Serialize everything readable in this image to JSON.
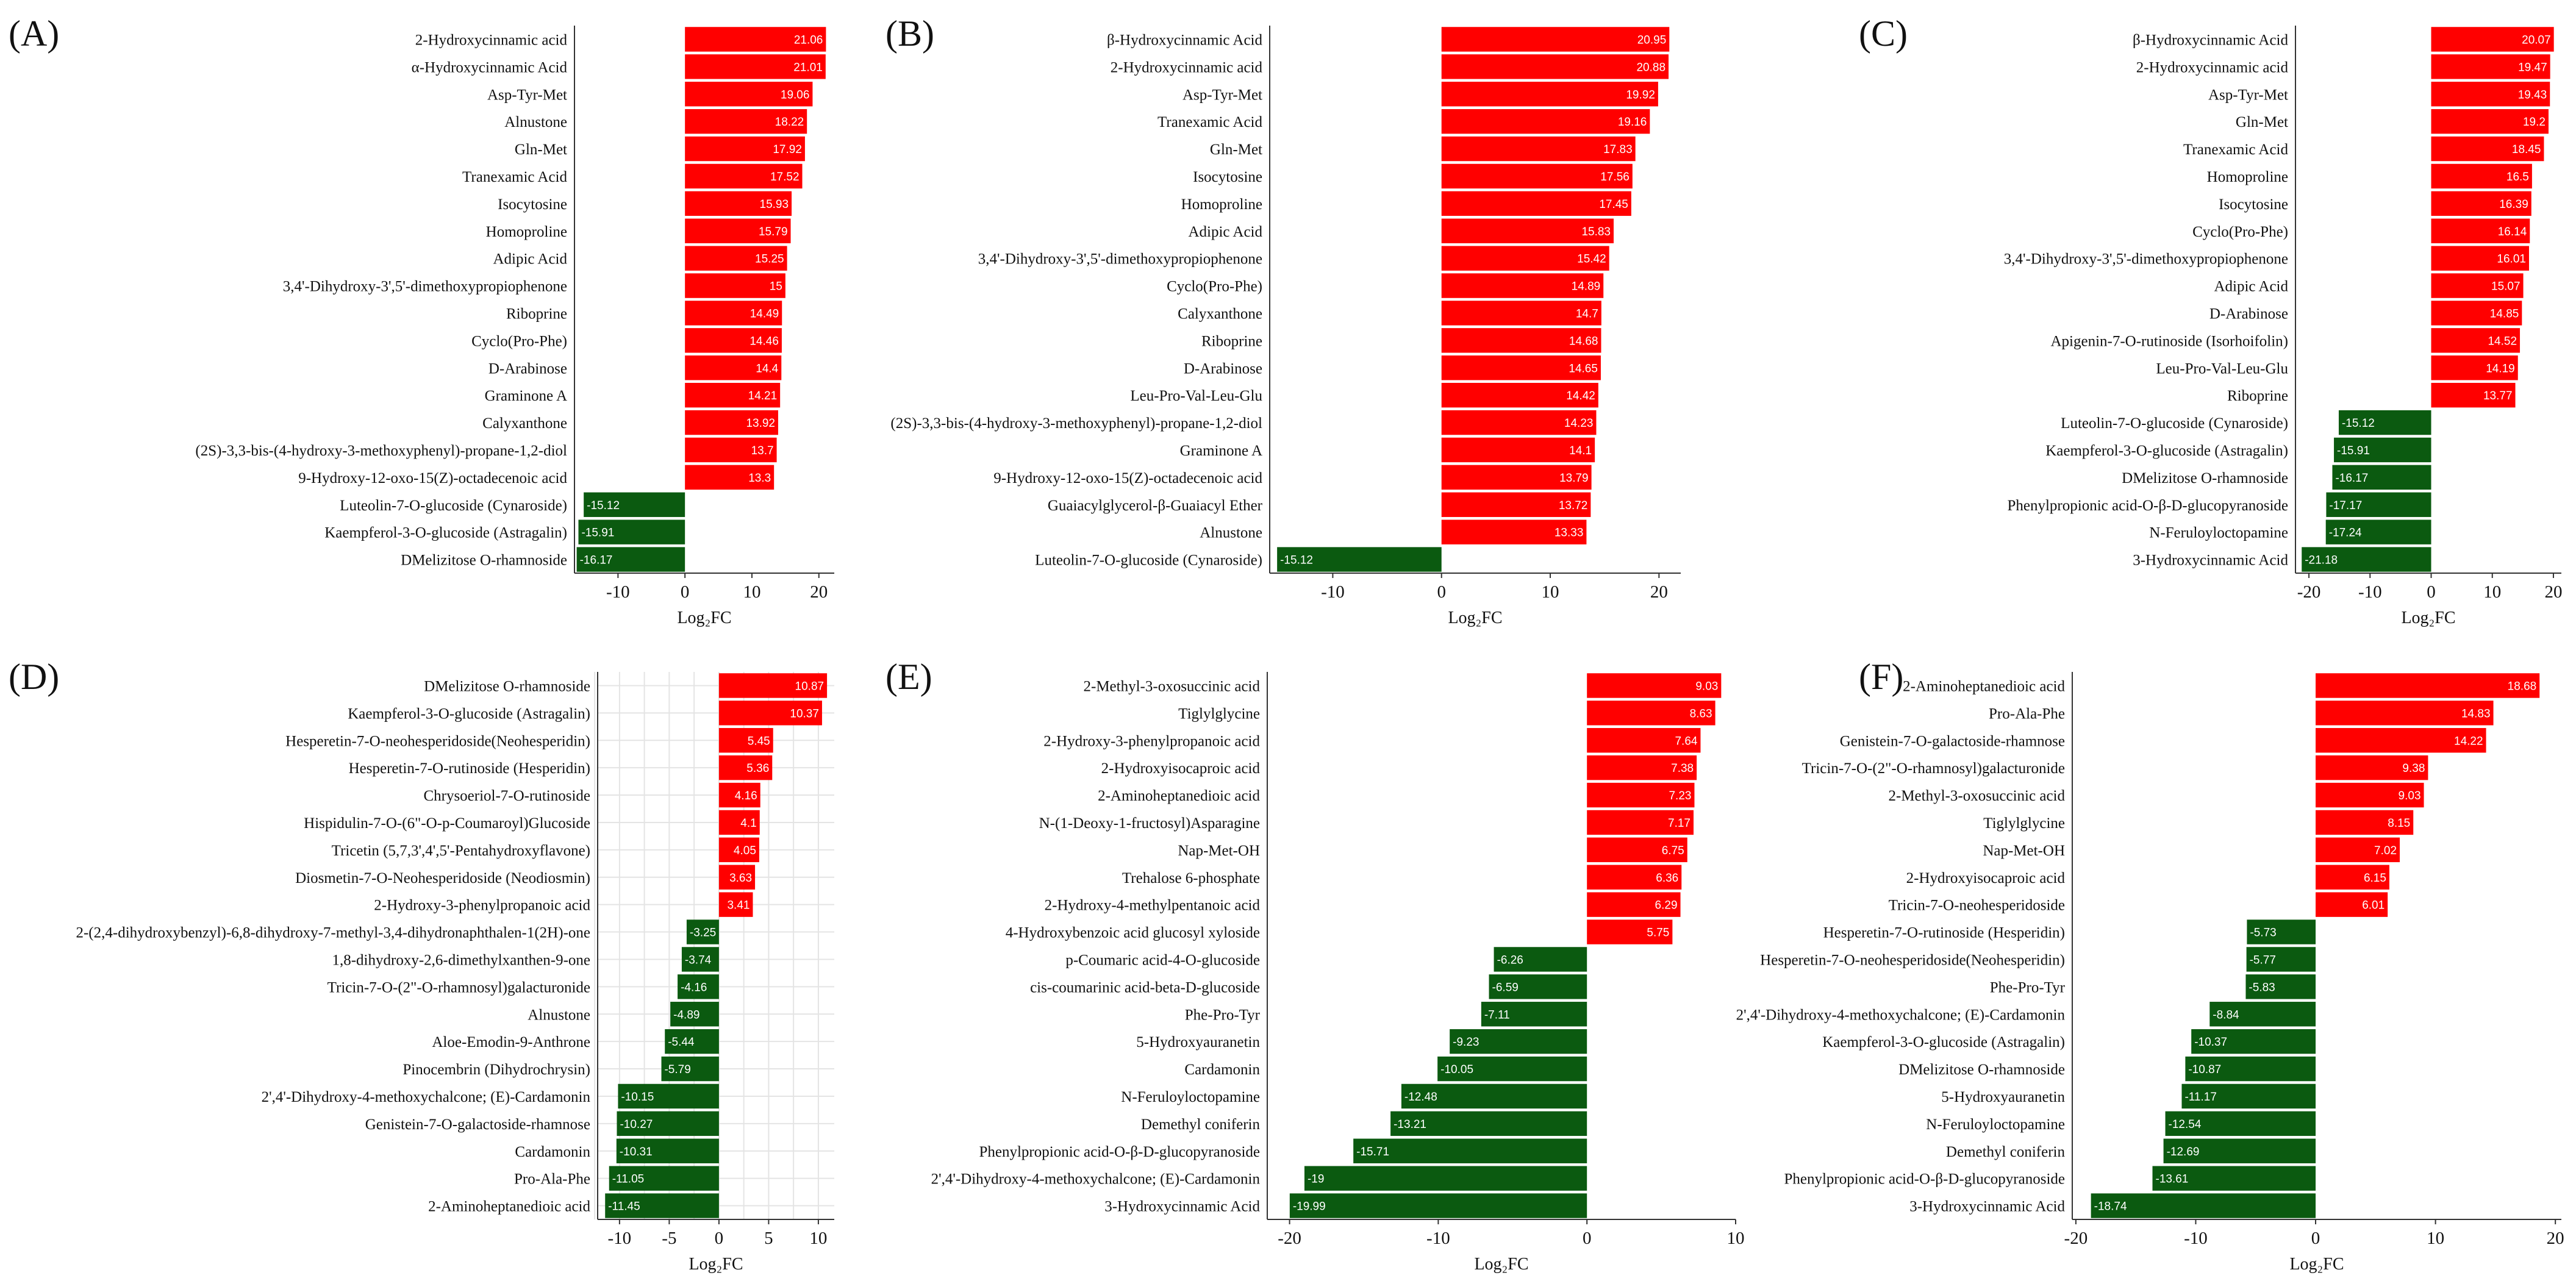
{
  "chart_data": [
    {
      "type": "bar",
      "orientation": "horizontal",
      "panel_label": "(A)",
      "xlabel": "Log₂FC",
      "xlim": [
        -16.5,
        22.3
      ],
      "xticks": [
        -10,
        0,
        10,
        20
      ],
      "grid": false,
      "colors": {
        "positive": "#ff0000",
        "negative": "#0b5a10"
      },
      "categories": [
        "2-Hydroxycinnamic acid",
        "α-Hydroxycinnamic Acid",
        "Asp-Tyr-Met",
        "Alnustone",
        "Gln-Met",
        "Tranexamic Acid",
        "Isocytosine",
        "Homoproline",
        "Adipic Acid",
        "3,4'-Dihydroxy-3',5'-dimethoxypropiophenone",
        "Riboprine",
        "Cyclo(Pro-Phe)",
        "D-Arabinose",
        "Graminone A",
        "Calyxanthone",
        "(2S)-3,3-bis-(4-hydroxy-3-methoxyphenyl)-propane-1,2-diol",
        "9-Hydroxy-12-oxo-15(Z)-octadecenoic acid",
        "Luteolin-7-O-glucoside (Cynaroside)",
        "Kaempferol-3-O-glucoside (Astragalin)",
        "DMelizitose O-rhamnoside"
      ],
      "values": [
        21.06,
        21.01,
        19.06,
        18.22,
        17.92,
        17.52,
        15.93,
        15.79,
        15.25,
        15,
        14.49,
        14.46,
        14.4,
        14.21,
        13.92,
        13.7,
        13.3,
        -15.12,
        -15.91,
        -16.17
      ]
    },
    {
      "type": "bar",
      "orientation": "horizontal",
      "panel_label": "(B)",
      "xlabel": "Log₂FC",
      "xlim": [
        -15.8,
        22
      ],
      "xticks": [
        -10,
        0,
        10,
        20
      ],
      "grid": false,
      "colors": {
        "positive": "#ff0000",
        "negative": "#0b5a10"
      },
      "categories": [
        "β-Hydroxycinnamic Acid",
        "2-Hydroxycinnamic acid",
        "Asp-Tyr-Met",
        "Tranexamic Acid",
        "Gln-Met",
        "Isocytosine",
        "Homoproline",
        "Adipic Acid",
        "3,4'-Dihydroxy-3',5'-dimethoxypropiophenone",
        "Cyclo(Pro-Phe)",
        "Calyxanthone",
        "Riboprine",
        "D-Arabinose",
        "Leu-Pro-Val-Leu-Glu",
        "(2S)-3,3-bis-(4-hydroxy-3-methoxyphenyl)-propane-1,2-diol",
        "Graminone A",
        "9-Hydroxy-12-oxo-15(Z)-octadecenoic acid",
        "Guaiacylglycerol-β-Guaiacyl Ether",
        "Alnustone",
        "Luteolin-7-O-glucoside (Cynaroside)"
      ],
      "values": [
        20.95,
        20.88,
        19.92,
        19.16,
        17.83,
        17.56,
        17.45,
        15.83,
        15.42,
        14.89,
        14.7,
        14.68,
        14.65,
        14.42,
        14.23,
        14.1,
        13.79,
        13.72,
        13.33,
        -15.12
      ]
    },
    {
      "type": "bar",
      "orientation": "horizontal",
      "panel_label": "(C)",
      "xlabel": "Log₂FC",
      "xlim": [
        -22.2,
        21.3
      ],
      "xticks": [
        -20,
        -10,
        0,
        10,
        20
      ],
      "grid": false,
      "colors": {
        "positive": "#ff0000",
        "negative": "#0b5a10"
      },
      "categories": [
        "β-Hydroxycinnamic Acid",
        "2-Hydroxycinnamic acid",
        "Asp-Tyr-Met",
        "Gln-Met",
        "Tranexamic Acid",
        "Homoproline",
        "Isocytosine",
        "Cyclo(Pro-Phe)",
        "3,4'-Dihydroxy-3',5'-dimethoxypropiophenone",
        "Adipic Acid",
        "D-Arabinose",
        "Apigenin-7-O-rutinoside (Isorhoifolin)",
        "Leu-Pro-Val-Leu-Glu",
        "Riboprine",
        "Luteolin-7-O-glucoside (Cynaroside)",
        "Kaempferol-3-O-glucoside (Astragalin)",
        "DMelizitose O-rhamnoside",
        "Phenylpropionic acid-O-β-D-glucopyranoside",
        "N-Feruloyloctopamine",
        "3-Hydroxycinnamic Acid"
      ],
      "values": [
        20.07,
        19.47,
        19.43,
        19.2,
        18.45,
        16.5,
        16.39,
        16.14,
        16.01,
        15.07,
        14.85,
        14.52,
        14.19,
        13.77,
        -15.12,
        -15.91,
        -16.17,
        -17.17,
        -17.24,
        -21.18
      ]
    },
    {
      "type": "bar",
      "orientation": "horizontal",
      "panel_label": "(D)",
      "xlabel": "Log₂FC",
      "xlim": [
        -12.2,
        11.6
      ],
      "xticks": [
        -10,
        -5,
        0,
        5,
        10
      ],
      "grid": true,
      "colors": {
        "positive": "#ff0000",
        "negative": "#0b5a10"
      },
      "categories": [
        "DMelizitose O-rhamnoside",
        "Kaempferol-3-O-glucoside (Astragalin)",
        "Hesperetin-7-O-neohesperidoside(Neohesperidin)",
        "Hesperetin-7-O-rutinoside (Hesperidin)",
        "Chrysoeriol-7-O-rutinoside",
        "Hispidulin-7-O-(6\"-O-p-Coumaroyl)Glucoside",
        "Tricetin (5,7,3',4',5'-Pentahydroxyflavone)",
        "Diosmetin-7-O-Neohesperidoside (Neodiosmin)",
        "2-Hydroxy-3-phenylpropanoic acid",
        "2-(2,4-dihydroxybenzyl)-6,8-dihydroxy-7-methyl-3,4-dihydronaphthalen-1(2H)-one",
        "1,8-dihydroxy-2,6-dimethylxanthen-9-one",
        "Tricin-7-O-(2\"-O-rhamnosyl)galacturonide",
        "Alnustone",
        "Aloe-Emodin-9-Anthrone",
        "Pinocembrin (Dihydrochrysin)",
        "2',4'-Dihydroxy-4-methoxychalcone; (E)-Cardamonin",
        "Genistein-7-O-galactoside-rhamnose",
        "Cardamonin",
        "Pro-Ala-Phe",
        "2-Aminoheptanedioic acid"
      ],
      "values": [
        10.87,
        10.37,
        5.45,
        5.36,
        4.16,
        4.1,
        4.05,
        3.63,
        3.41,
        -3.25,
        -3.74,
        -4.16,
        -4.89,
        -5.44,
        -5.79,
        -10.15,
        -10.27,
        -10.31,
        -11.05,
        -11.45
      ]
    },
    {
      "type": "bar",
      "orientation": "horizontal",
      "panel_label": "(E)",
      "xlabel": "Log₂FC",
      "xlim": [
        -21.5,
        10
      ],
      "xticks": [
        -20,
        -10,
        0,
        10
      ],
      "grid": false,
      "colors": {
        "positive": "#ff0000",
        "negative": "#0b5a10"
      },
      "categories": [
        "2-Methyl-3-oxosuccinic acid",
        "Tiglylglycine",
        "2-Hydroxy-3-phenylpropanoic acid",
        "2-Hydroxyisocaproic acid",
        "2-Aminoheptanedioic acid",
        "N-(1-Deoxy-1-fructosyl)Asparagine",
        "Nap-Met-OH",
        "Trehalose 6-phosphate",
        "2-Hydroxy-4-methylpentanoic acid",
        "4-Hydroxybenzoic acid glucosyl xyloside",
        "p-Coumaric acid-4-O-glucoside",
        "cis-coumarinic acid-beta-D-glucoside",
        "Phe-Pro-Tyr",
        "5-Hydroxyauranetin",
        "Cardamonin",
        "N-Feruloyloctopamine",
        "Demethyl coniferin",
        "Phenylpropionic acid-O-β-D-glucopyranoside",
        "2',4'-Dihydroxy-4-methoxychalcone; (E)-Cardamonin",
        "3-Hydroxycinnamic Acid"
      ],
      "values": [
        9.03,
        8.63,
        7.64,
        7.38,
        7.23,
        7.17,
        6.75,
        6.36,
        6.29,
        5.75,
        -6.26,
        -6.59,
        -7.11,
        -9.23,
        -10.05,
        -12.48,
        -13.21,
        -15.71,
        -19,
        -19.99
      ]
    },
    {
      "type": "bar",
      "orientation": "horizontal",
      "panel_label": "(F)",
      "xlabel": "Log₂FC",
      "xlim": [
        -20.3,
        20.5
      ],
      "xticks": [
        -20,
        -10,
        0,
        10,
        20
      ],
      "grid": false,
      "colors": {
        "positive": "#ff0000",
        "negative": "#0b5a10"
      },
      "categories": [
        "2-Aminoheptanedioic acid",
        "Pro-Ala-Phe",
        "Genistein-7-O-galactoside-rhamnose",
        "Tricin-7-O-(2\"-O-rhamnosyl)galacturonide",
        "2-Methyl-3-oxosuccinic acid",
        "Tiglylglycine",
        "Nap-Met-OH",
        "2-Hydroxyisocaproic acid",
        "Tricin-7-O-neohesperidoside",
        "Hesperetin-7-O-rutinoside (Hesperidin)",
        "Hesperetin-7-O-neohesperidoside(Neohesperidin)",
        "Phe-Pro-Tyr",
        "2',4'-Dihydroxy-4-methoxychalcone; (E)-Cardamonin",
        "Kaempferol-3-O-glucoside (Astragalin)",
        "DMelizitose O-rhamnoside",
        "5-Hydroxyauranetin",
        "N-Feruloyloctopamine",
        "Demethyl coniferin",
        "Phenylpropionic acid-O-β-D-glucopyranoside",
        "3-Hydroxycinnamic Acid"
      ],
      "values": [
        18.68,
        14.83,
        14.22,
        9.38,
        9.03,
        8.15,
        7.02,
        6.15,
        6.01,
        -5.73,
        -5.77,
        -5.83,
        -8.84,
        -10.37,
        -10.87,
        -11.17,
        -12.54,
        -12.69,
        -13.61,
        -18.74
      ]
    }
  ]
}
